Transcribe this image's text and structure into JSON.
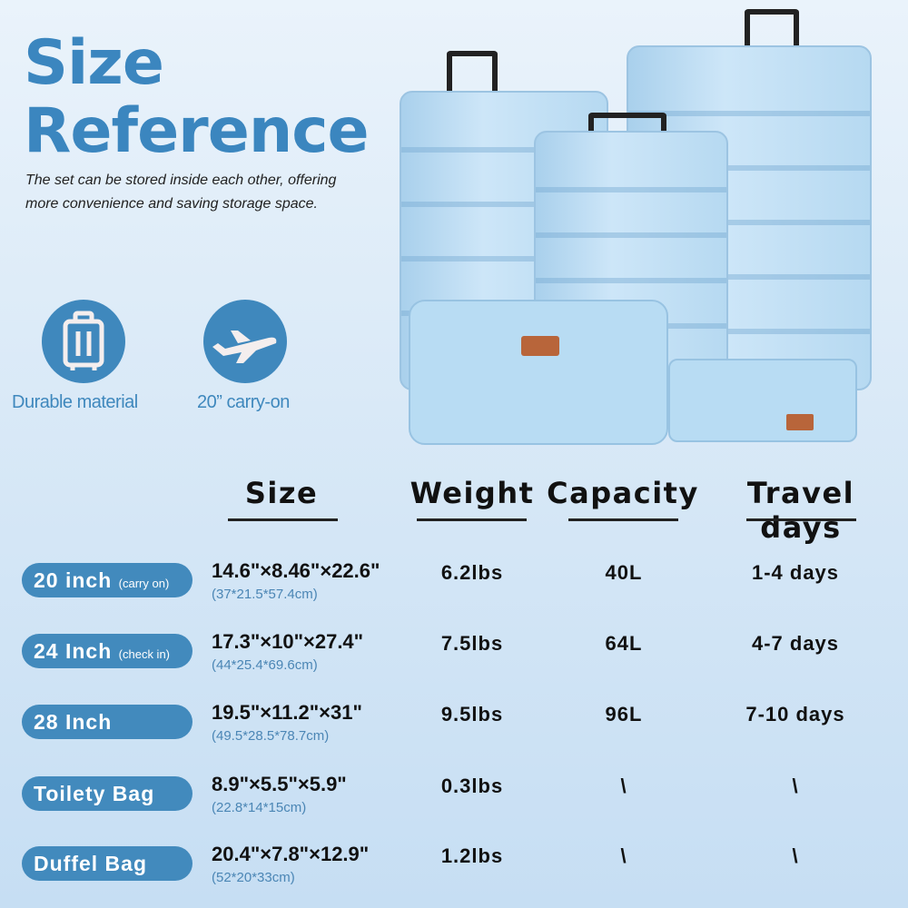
{
  "title": {
    "line1": "Size",
    "line2": "Reference"
  },
  "description": "The set can be stored inside each other, offering more convenience and saving storage space.",
  "features": [
    {
      "icon": "luggage-icon",
      "label": "Durable material"
    },
    {
      "icon": "airplane-icon",
      "label": "20” carry-on"
    }
  ],
  "colors": {
    "accent": "#3f88bd",
    "pill": "#428abd",
    "cm_text": "#4b86b5"
  },
  "headers": [
    "Size",
    "Weight",
    "Capacity",
    "Travel days"
  ],
  "rows": [
    {
      "name": "20 inch",
      "note": "(carry on)",
      "size": "14.6\"×8.46\"×22.6\"",
      "cm": "(37*21.5*57.4cm)",
      "weight": "6.2lbs",
      "capacity": "40L",
      "days": "1-4 days"
    },
    {
      "name": "24 Inch",
      "note": "(check in)",
      "size": "17.3\"×10\"×27.4\"",
      "cm": "(44*25.4*69.6cm)",
      "weight": "7.5lbs",
      "capacity": "64L",
      "days": "4-7 days"
    },
    {
      "name": "28 Inch",
      "note": "",
      "size": "19.5\"×11.2\"×31\"",
      "cm": "(49.5*28.5*78.7cm)",
      "weight": "9.5lbs",
      "capacity": "96L",
      "days": "7-10 days"
    },
    {
      "name": "Toilety Bag",
      "note": "",
      "size": "8.9\"×5.5\"×5.9\"",
      "cm": "(22.8*14*15cm)",
      "weight": "0.3lbs",
      "capacity": "\\",
      "days": "\\"
    },
    {
      "name": "Duffel Bag",
      "note": "",
      "size": "20.4\"×7.8\"×12.9\"",
      "cm": "(52*20*33cm)",
      "weight": "1.2lbs",
      "capacity": "\\",
      "days": "\\"
    }
  ]
}
